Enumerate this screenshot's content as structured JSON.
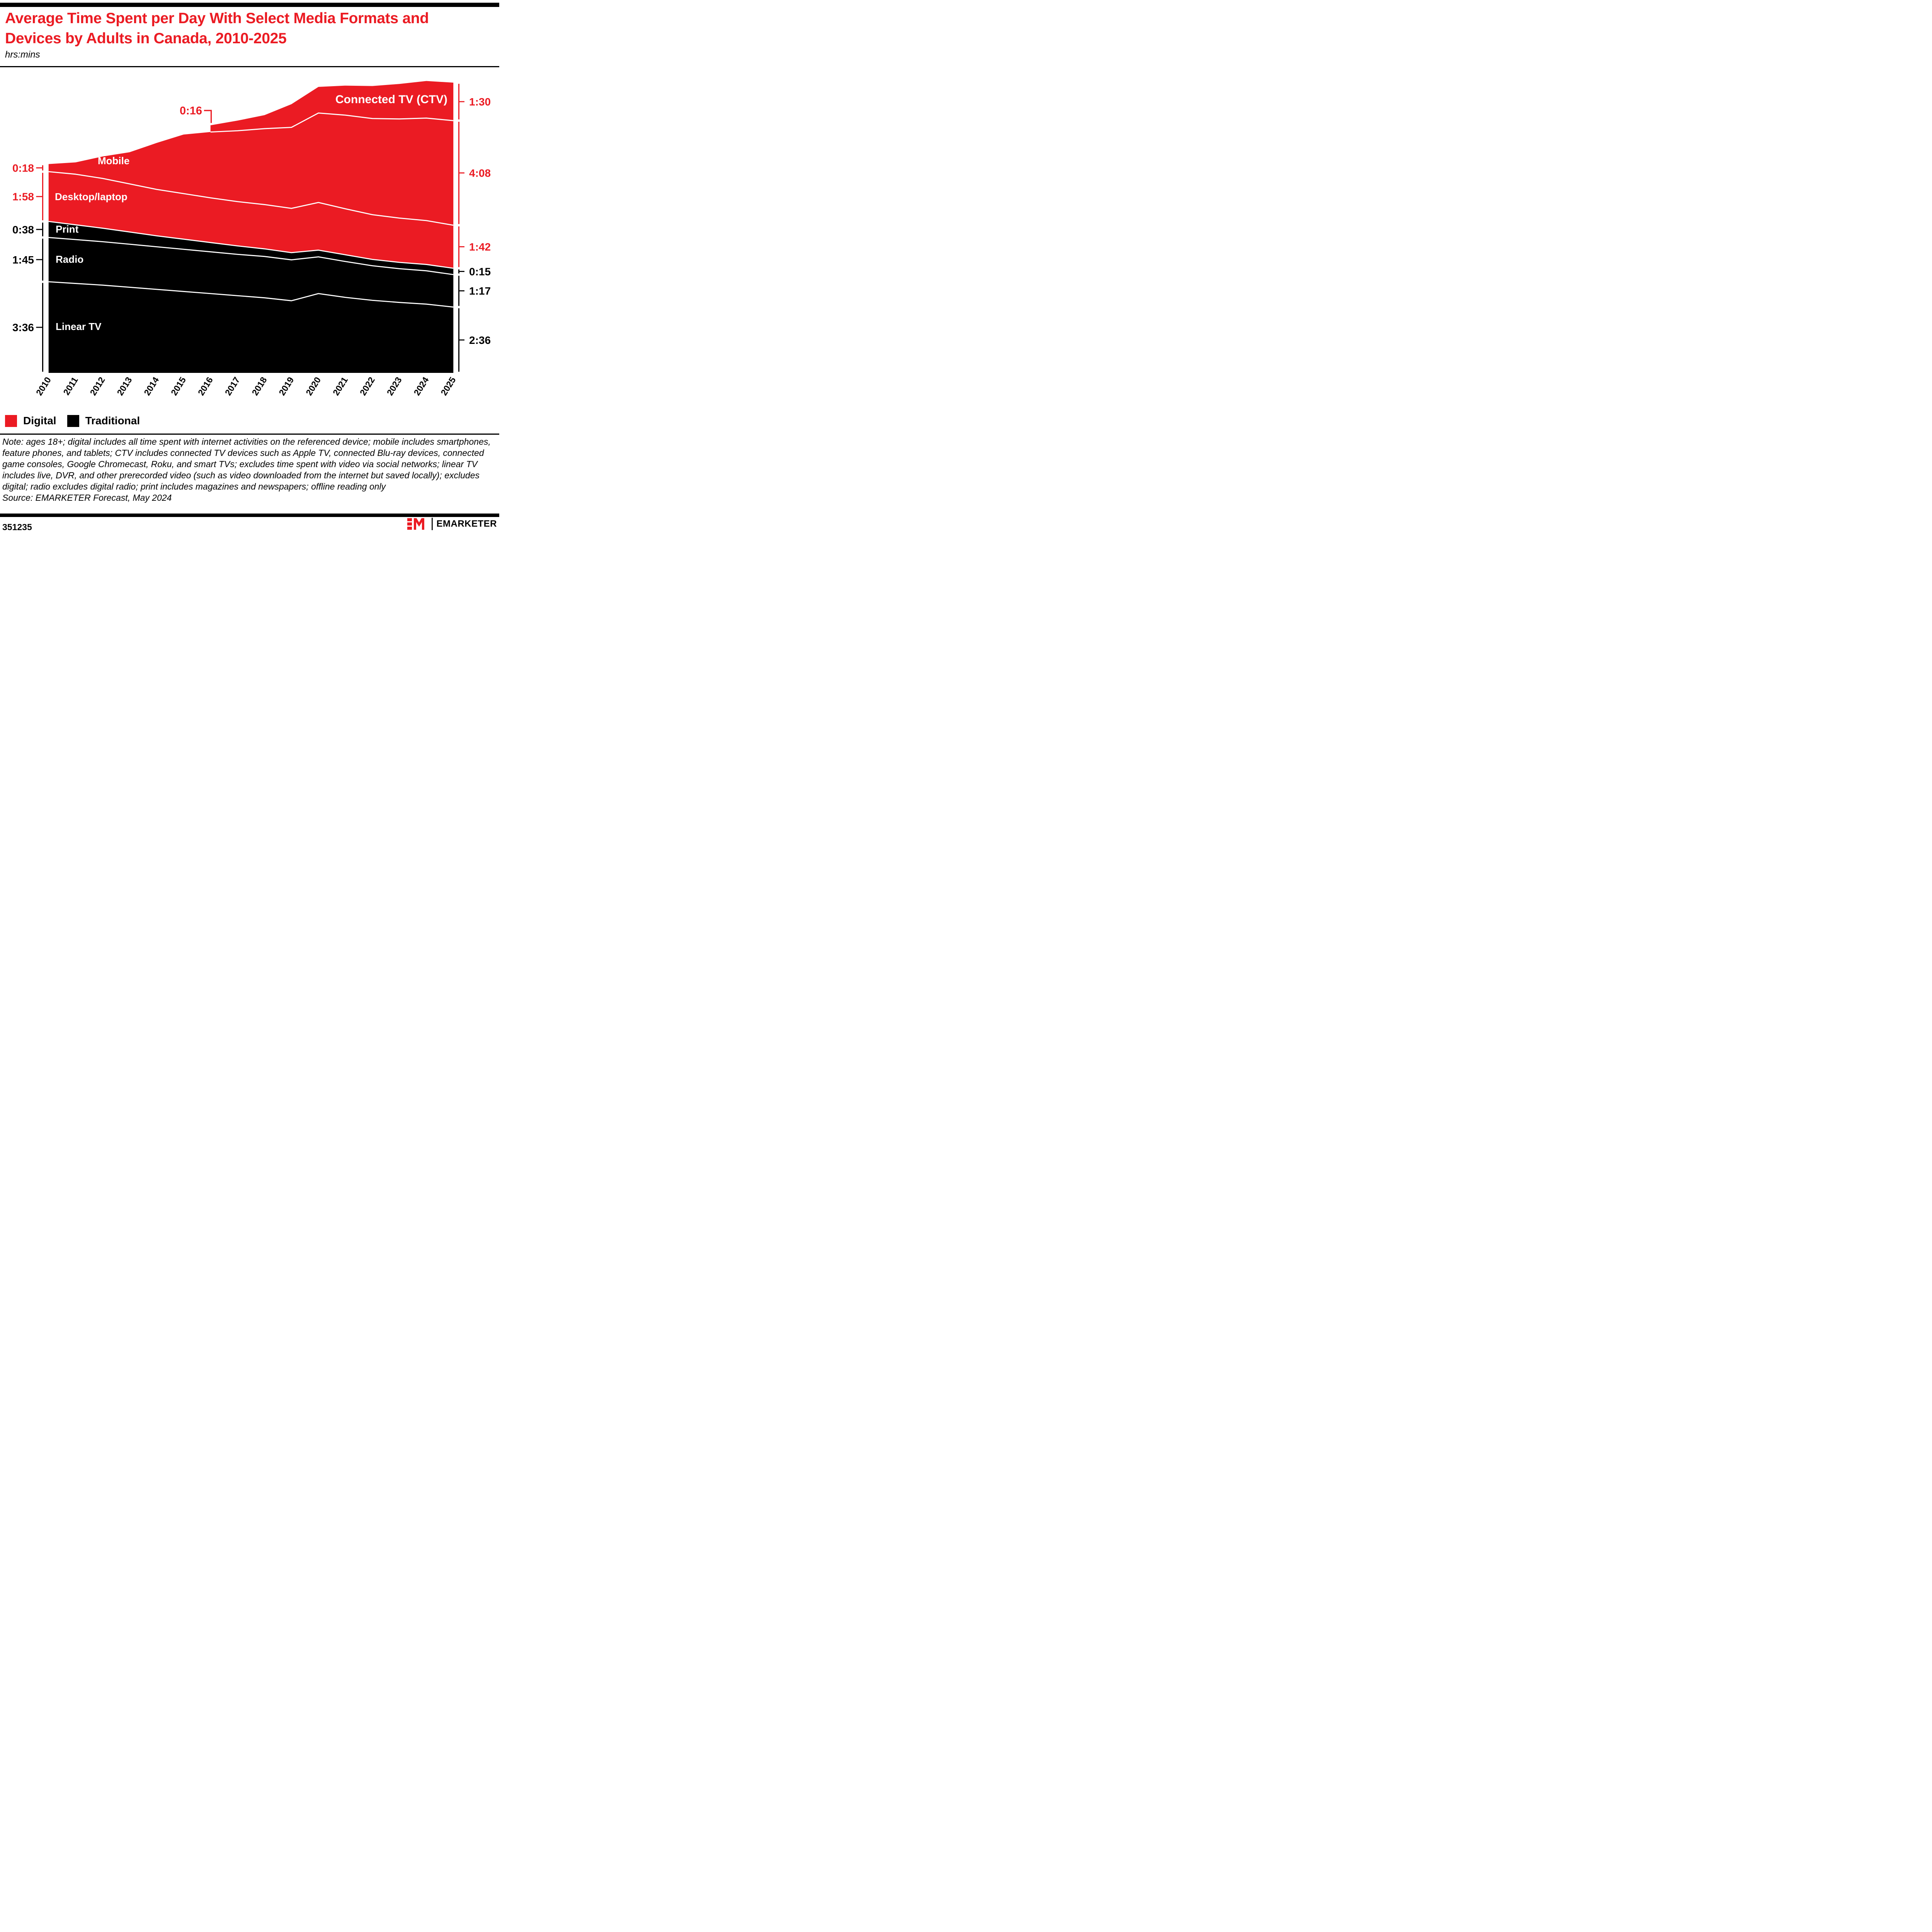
{
  "header": {
    "title": "Average Time Spent per Day With Select Media Formats and Devices by Adults in Canada, 2010-2025",
    "subtitle": "hrs:mins"
  },
  "colors": {
    "digital_red": "#EB1B23",
    "traditional_black": "#000000",
    "separator_white": "#ffffff"
  },
  "chart_data": {
    "type": "area",
    "stacked": true,
    "units": "hrs:mins",
    "grid": false,
    "x": [
      2010,
      2011,
      2012,
      2013,
      2014,
      2015,
      2016,
      2017,
      2018,
      2019,
      2020,
      2021,
      2022,
      2023,
      2024,
      2025
    ],
    "series": [
      {
        "name": "Linear TV",
        "group": "Traditional",
        "color": "#000000",
        "values": [
          "3:36",
          "3:32",
          "3:28",
          "3:23",
          "3:18",
          "3:13",
          "3:08",
          "3:03",
          "2:58",
          "2:51",
          "3:08",
          "2:59",
          "2:52",
          "2:47",
          "2:43",
          "2:36"
        ]
      },
      {
        "name": "Radio",
        "group": "Traditional",
        "color": "#000000",
        "values": [
          "1:45",
          "1:44",
          "1:43",
          "1:42",
          "1:41",
          "1:40",
          "1:39",
          "1:38",
          "1:38",
          "1:37",
          "1:27",
          "1:25",
          "1:22",
          "1:20",
          "1:19",
          "1:17"
        ]
      },
      {
        "name": "Print",
        "group": "Traditional",
        "color": "#000000",
        "values": [
          "0:38",
          "0:35",
          "0:32",
          "0:29",
          "0:26",
          "0:24",
          "0:22",
          "0:20",
          "0:18",
          "0:17",
          "0:16",
          "0:16",
          "0:15",
          "0:15",
          "0:15",
          "0:15"
        ]
      },
      {
        "name": "Desktop/laptop",
        "group": "Digital",
        "color": "#EB1B23",
        "values": [
          "1:58",
          "2:00",
          "1:58",
          "1:54",
          "1:50",
          "1:48",
          "1:46",
          "1:45",
          "1:45",
          "1:45",
          "1:53",
          "1:49",
          "1:46",
          "1:45",
          "1:44",
          "1:42"
        ]
      },
      {
        "name": "Mobile",
        "group": "Digital",
        "color": "#EB1B23",
        "values": [
          "0:18",
          "0:28",
          "0:52",
          "1:15",
          "1:50",
          "2:20",
          "2:36",
          "2:48",
          "3:00",
          "3:12",
          "3:32",
          "3:42",
          "3:48",
          "3:55",
          "4:03",
          "4:08"
        ]
      },
      {
        "name": "Connected TV (CTV)",
        "group": "Digital",
        "color": "#EB1B23",
        "values": [
          null,
          null,
          null,
          null,
          null,
          null,
          "0:16",
          "0:24",
          "0:32",
          "0:55",
          "1:02",
          "1:10",
          "1:17",
          "1:23",
          "1:28",
          "1:30"
        ]
      }
    ],
    "left_axis_labels_2010": [
      "0:18",
      "1:58",
      "0:38",
      "1:45",
      "3:36"
    ],
    "right_axis_labels_2025": [
      "1:30",
      "4:08",
      "1:42",
      "0:15",
      "1:17",
      "2:36"
    ],
    "ctv_first_value_callout": "0:16",
    "legend_position": "bottom-left"
  },
  "legend": {
    "items": [
      {
        "label": "Digital",
        "color": "#EB1B23"
      },
      {
        "label": "Traditional",
        "color": "#000000"
      }
    ]
  },
  "note": {
    "text": "Note: ages 18+; digital includes all time spent with internet activities on the referenced device; mobile includes smartphones, feature phones, and tablets; CTV includes connected TV devices such as Apple TV, connected Blu-ray devices, connected game consoles, Google Chromecast, Roku, and smart TVs; excludes time spent with video via social networks; linear TV includes live, DVR, and other prerecorded video (such as video downloaded from the internet but saved locally); excludes digital; radio excludes digital radio; print includes magazines and newspapers; offline reading only",
    "source": "Source: EMARKETER Forecast, May 2024"
  },
  "footer": {
    "chart_id": "351235",
    "brand": "EMARKETER"
  }
}
